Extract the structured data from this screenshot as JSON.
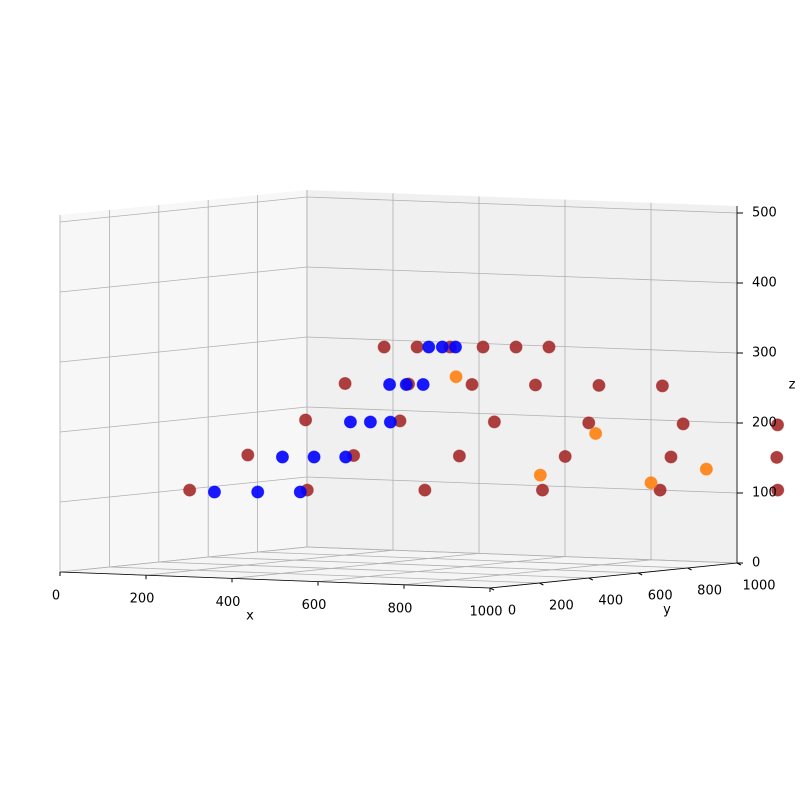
{
  "chart_data": {
    "type": "scatter3d",
    "x_label": "x",
    "y_label": "y",
    "z_label": "z",
    "xlim": [
      0,
      1000
    ],
    "ylim": [
      0,
      1000
    ],
    "zlim": [
      0,
      510
    ],
    "xticks": [
      0,
      200,
      400,
      600,
      800,
      1000
    ],
    "yticks": [
      0,
      200,
      400,
      600,
      800,
      1000
    ],
    "zticks": [
      0,
      100,
      200,
      300,
      400,
      500
    ],
    "grid": true,
    "series": [
      {
        "color": "#a52a2a",
        "x": [
          20,
          220,
          420,
          620,
          820,
          1020,
          118,
          306,
          494,
          682,
          870,
          1058,
          215,
          392,
          569,
          746,
          923,
          1100,
          258,
          374,
          490,
          606,
          722,
          838,
          300,
          356,
          412,
          468,
          524,
          580
        ],
        "y": [
          490,
          618,
          746,
          874,
          1002,
          1130,
          555,
          656,
          757,
          858,
          959,
          1060,
          620,
          694,
          768,
          842,
          916,
          990,
          705,
          760,
          815,
          870,
          925,
          980,
          790,
          826,
          862,
          898,
          934,
          970
        ],
        "z": [
          100,
          100,
          100,
          100,
          100,
          100,
          150,
          150,
          150,
          150,
          150,
          150,
          200,
          200,
          200,
          200,
          200,
          200,
          250,
          250,
          250,
          250,
          250,
          250,
          300,
          300,
          300,
          300,
          300,
          300
        ]
      },
      {
        "color": "#0000ff",
        "x": [
          95,
          168,
          240,
          210,
          264,
          318,
          325,
          360,
          395,
          350,
          379,
          408,
          375,
          398,
          420
        ],
        "y": [
          460,
          508,
          555,
          535,
          569,
          603,
          610,
          630,
          650,
          725,
          742,
          760,
          840,
          855,
          870
        ],
        "z": [
          100,
          100,
          100,
          150,
          150,
          150,
          200,
          200,
          200,
          250,
          250,
          250,
          300,
          300,
          300
        ]
      },
      {
        "color": "#ff7f0e",
        "x": [
          600,
          800,
          700,
          900,
          450
        ],
        "y": [
          900,
          1000,
          950,
          1050,
          820
        ],
        "z": [
          120,
          110,
          180,
          130,
          260
        ]
      }
    ]
  }
}
